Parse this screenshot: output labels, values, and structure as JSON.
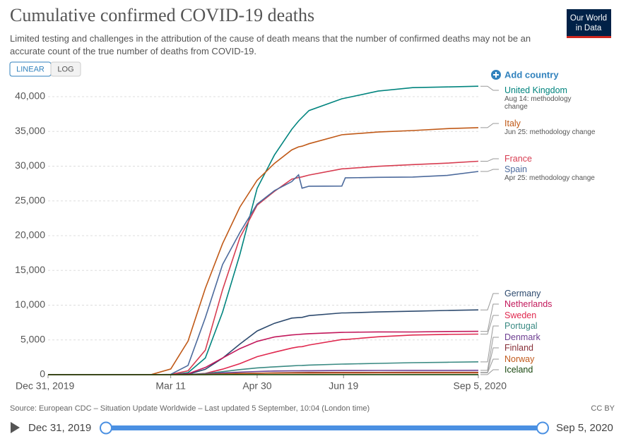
{
  "chart_data": {
    "type": "line",
    "title": "Cumulative confirmed COVID-19 deaths",
    "subtitle": "Limited testing and challenges in the attribution of the cause of death means that the number of confirmed deaths may not be an accurate count of the true number of deaths from COVID-19.",
    "scale_buttons": [
      "LINEAR",
      "LOG"
    ],
    "log_scale": false,
    "add_country": "Add country",
    "logo": [
      "Our World",
      "in Data"
    ],
    "source": "Source: European CDC – Situation Update Worldwide – Last updated 5 September, 10:04 (London time)",
    "license": "CC BY",
    "timeline": {
      "start": "Dec 31, 2019",
      "end": "Sep 5, 2020"
    },
    "grid": true,
    "x": [
      "2019-12-31",
      "2020-02-29",
      "2020-03-11",
      "2020-03-21",
      "2020-03-31",
      "2020-04-10",
      "2020-04-20",
      "2020-04-30",
      "2020-05-10",
      "2020-05-20",
      "2020-05-24",
      "2020-05-26",
      "2020-05-30",
      "2020-06-18",
      "2020-06-20",
      "2020-07-09",
      "2020-07-29",
      "2020-08-18",
      "2020-09-05"
    ],
    "xlim": [
      "2019-12-31",
      "2020-09-05"
    ],
    "xticks": [
      {
        "value": "2019-12-31",
        "label": "Dec 31, 2019"
      },
      {
        "value": "2020-03-11",
        "label": "Mar 11"
      },
      {
        "value": "2020-04-30",
        "label": "Apr 30"
      },
      {
        "value": "2020-06-19",
        "label": "Jun 19"
      },
      {
        "value": "2020-09-05",
        "label": "Sep 5, 2020"
      }
    ],
    "ylim": [
      0,
      40000
    ],
    "yticks": [
      0,
      {
        "value": 5000,
        "label": "5,000"
      },
      {
        "value": 10000,
        "label": "10,000"
      },
      {
        "value": 15000,
        "label": "15,000"
      },
      {
        "value": 20000,
        "label": "20,000"
      },
      {
        "value": 25000,
        "label": "25,000"
      },
      {
        "value": 30000,
        "label": "30,000"
      },
      {
        "value": 35000,
        "label": "35,000"
      },
      {
        "value": 40000,
        "label": "40,000"
      }
    ],
    "series": [
      {
        "name": "United Kingdom",
        "color": "#00847e",
        "annotation": "Aug 14: methodology change",
        "values": [
          0,
          0,
          6,
          280,
          2400,
          9000,
          17300,
          26800,
          31600,
          35300,
          36500,
          37000,
          38000,
          39700,
          39800,
          40800,
          41300,
          41400,
          41500
        ]
      },
      {
        "name": "Italy",
        "color": "#c05917",
        "annotation": "Jun 25: methodology change",
        "values": [
          0,
          29,
          827,
          4825,
          12428,
          18849,
          24114,
          27967,
          30395,
          32330,
          32785,
          32877,
          33229,
          34514,
          34561,
          34914,
          35129,
          35405,
          35541
        ]
      },
      {
        "name": "France",
        "color": "#d73c50",
        "values": [
          0,
          2,
          33,
          562,
          3523,
          12210,
          19718,
          24376,
          26380,
          28132,
          28370,
          28460,
          28717,
          29617,
          29633,
          29982,
          30223,
          30434,
          30706
        ]
      },
      {
        "name": "Spain",
        "color": "#4c6a9c",
        "annotation": "Apr 25: methodology change",
        "values": [
          0,
          0,
          48,
          1326,
          8189,
          15843,
          20453,
          24543,
          26478,
          27778,
          28752,
          26834,
          27121,
          27136,
          28315,
          28396,
          28441,
          28670,
          29234
        ]
      },
      {
        "name": "Germany",
        "color": "#2d4a6e",
        "values": [
          0,
          0,
          2,
          55,
          775,
          2373,
          4404,
          6288,
          7395,
          8144,
          8216,
          8247,
          8500,
          8882,
          8887,
          9024,
          9128,
          9243,
          9321
        ]
      },
      {
        "name": "Netherlands",
        "color": "#c2185b",
        "values": [
          0,
          0,
          4,
          136,
          1039,
          2396,
          3751,
          4795,
          5422,
          5715,
          5788,
          5830,
          5903,
          6081,
          6090,
          6150,
          6147,
          6212,
          6230
        ]
      },
      {
        "name": "Sweden",
        "color": "#e0294f",
        "values": [
          0,
          0,
          1,
          20,
          180,
          793,
          1580,
          2586,
          3225,
          3831,
          3998,
          4029,
          4266,
          5053,
          5053,
          5447,
          5702,
          5802,
          5835
        ]
      },
      {
        "name": "Portugal",
        "color": "#3a8a83",
        "values": [
          0,
          0,
          0,
          12,
          160,
          435,
          735,
          973,
          1126,
          1263,
          1316,
          1330,
          1383,
          1527,
          1534,
          1629,
          1722,
          1784,
          1846
        ]
      },
      {
        "name": "Denmark",
        "color": "#6d3e91",
        "values": [
          0,
          0,
          0,
          9,
          90,
          260,
          364,
          452,
          526,
          561,
          563,
          565,
          571,
          600,
          600,
          609,
          615,
          621,
          626
        ]
      },
      {
        "name": "Finland",
        "color": "#883039",
        "values": [
          0,
          0,
          0,
          1,
          13,
          56,
          141,
          211,
          265,
          306,
          312,
          313,
          320,
          326,
          326,
          329,
          331,
          334,
          336
        ]
      },
      {
        "name": "Norway",
        "color": "#c15a1c",
        "values": [
          0,
          0,
          0,
          3,
          39,
          113,
          182,
          207,
          219,
          234,
          235,
          235,
          236,
          244,
          244,
          252,
          255,
          264,
          264
        ]
      },
      {
        "name": "Iceland",
        "color": "#18470f",
        "values": [
          0,
          0,
          0,
          1,
          2,
          6,
          10,
          10,
          10,
          10,
          10,
          10,
          10,
          10,
          10,
          10,
          10,
          10,
          10
        ]
      }
    ]
  }
}
